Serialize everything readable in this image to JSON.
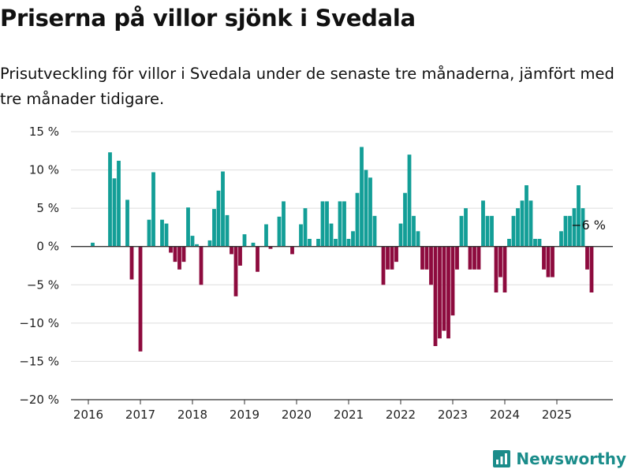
{
  "header": {
    "title": "Priserna på villor sjönk i Svedala",
    "subtitle": "Prisutveckling för villor i Svedala under de senaste tre månaderna, jämfört med tre månader tidigare."
  },
  "brand": {
    "name": "Newsworthy",
    "icon": "newsworthy-logo-icon"
  },
  "colors": {
    "positive": "#139e97",
    "negative": "#8d0b3e",
    "grid": "#dddddd",
    "axis": "#333333"
  },
  "chart_data": {
    "type": "bar",
    "title": "",
    "xlabel": "",
    "ylabel": "",
    "ylim": [
      -20,
      15
    ],
    "y_ticks": [
      {
        "value": 15,
        "label": "15 %"
      },
      {
        "value": 10,
        "label": "10 %"
      },
      {
        "value": 5,
        "label": "5 %"
      },
      {
        "value": 0,
        "label": "0 %"
      },
      {
        "value": -5,
        "label": "−5 %"
      },
      {
        "value": -10,
        "label": "−10 %"
      },
      {
        "value": -15,
        "label": "−15 %"
      },
      {
        "value": -20,
        "label": "−20 %"
      }
    ],
    "x_ticks": [
      "2016",
      "2017",
      "2018",
      "2019",
      "2020",
      "2021",
      "2022",
      "2023",
      "2024",
      "2025"
    ],
    "start": "2016-01",
    "frequency": "monthly",
    "values": [
      0,
      0.5,
      0,
      0,
      0,
      12.3,
      8.9,
      11.2,
      0,
      6.1,
      -4.3,
      0,
      -13.7,
      0,
      3.5,
      9.7,
      0,
      3.5,
      3.0,
      -0.8,
      -2.0,
      -3.0,
      -2.0,
      5.1,
      1.4,
      0.3,
      -5.0,
      0,
      0.8,
      4.9,
      7.3,
      9.8,
      4.1,
      -1.0,
      -6.5,
      -2.5,
      1.6,
      0,
      0.5,
      -3.3,
      0,
      2.9,
      -0.3,
      0,
      3.9,
      5.9,
      0,
      -1.0,
      0,
      2.9,
      5.0,
      1.0,
      0,
      1.0,
      5.9,
      5.9,
      3.0,
      1.0,
      5.9,
      5.9,
      1.0,
      2.0,
      7.0,
      13.0,
      10.0,
      9.0,
      4.0,
      0,
      -5.0,
      -3.0,
      -3.0,
      -2.0,
      3.0,
      7.0,
      12.0,
      4.0,
      2.0,
      -3.0,
      -3.0,
      -5.0,
      -13.0,
      -12.0,
      -11.0,
      -12.0,
      -9.0,
      -3.0,
      4.0,
      5.0,
      -3.0,
      -3.0,
      -3.0,
      6.0,
      4.0,
      4.0,
      -6.0,
      -4.0,
      -6.0,
      1.0,
      4.0,
      5.0,
      6.0,
      8.0,
      6.0,
      1.0,
      1.0,
      -3.0,
      -4.0,
      -4.0,
      0,
      2.0,
      4.0,
      4.0,
      5.0,
      8.0,
      5.0,
      -3.0,
      -6.0
    ],
    "annotation": {
      "label": "−6 %",
      "x": "2025-07"
    }
  }
}
